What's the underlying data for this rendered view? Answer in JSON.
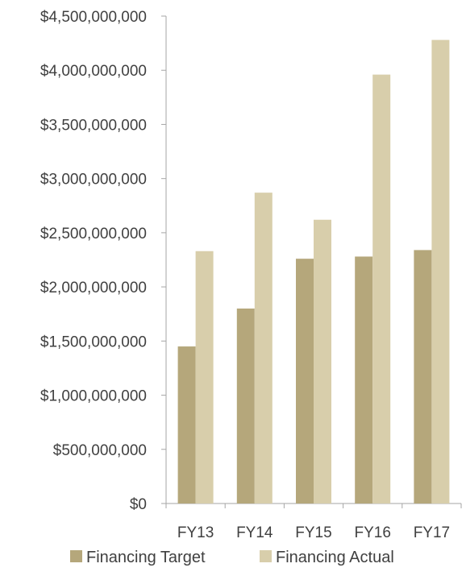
{
  "chart_data": {
    "type": "bar",
    "title": "",
    "xlabel": "",
    "ylabel": "",
    "categories": [
      "FY13",
      "FY14",
      "FY15",
      "FY16",
      "FY17"
    ],
    "series": [
      {
        "name": "Financing Target",
        "color": "#b5a77b",
        "values": [
          1450000000,
          1800000000,
          2260000000,
          2280000000,
          2340000000
        ]
      },
      {
        "name": "Financing Actual",
        "color": "#d8ceab",
        "values": [
          2330000000,
          2870000000,
          2620000000,
          3960000000,
          4280000000
        ]
      }
    ],
    "ylim": [
      0,
      4500000000
    ],
    "yticks": [
      0,
      500000000,
      1000000000,
      1500000000,
      2000000000,
      2500000000,
      3000000000,
      3500000000,
      4000000000,
      4500000000
    ],
    "ytick_labels": [
      "$0",
      "$500,000,000",
      "$1,000,000,000",
      "$1,500,000,000",
      "$2,000,000,000",
      "$2,500,000,000",
      "$3,000,000,000",
      "$3,500,000,000",
      "$4,000,000,000",
      "$4,500,000,000"
    ],
    "grid": false,
    "legend_position": "bottom"
  }
}
